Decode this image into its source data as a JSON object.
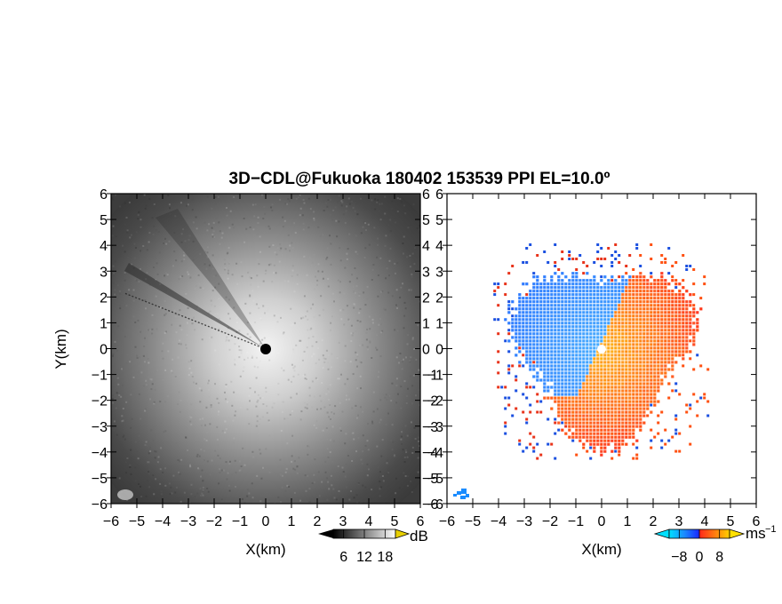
{
  "figure": {
    "title": "3D−CDL@Fukuoka 180402 153539 PPI EL=10.0º"
  },
  "chart_data": [
    {
      "type": "heatmap",
      "panel": "reflectivity",
      "xlabel": "X(km)",
      "ylabel": "Y(km)",
      "xlim": [
        -6,
        6
      ],
      "ylim": [
        -6,
        6
      ],
      "xticks": [
        "−6",
        "−5",
        "−4",
        "−3",
        "−2",
        "−1",
        "0",
        "1",
        "2",
        "3",
        "4",
        "5",
        "6"
      ],
      "yticks": [
        "6",
        "5",
        "4",
        "3",
        "2",
        "1",
        "0",
        "−1",
        "−2",
        "−3",
        "−4",
        "−5",
        "−6"
      ],
      "colormap": "grayscale",
      "colorbar": {
        "ticks": [
          "6",
          "12",
          "18"
        ],
        "unit": "dB",
        "range": [
          3,
          21
        ]
      },
      "description_values": {
        "radar_center": [
          0,
          0
        ],
        "max_range_km": 6
      }
    },
    {
      "type": "heatmap",
      "panel": "doppler_velocity",
      "xlabel": "X(km)",
      "xlim": [
        -6,
        6
      ],
      "ylim": [
        -6,
        6
      ],
      "xticks": [
        "−6",
        "−5",
        "−4",
        "−3",
        "−2",
        "−1",
        "0",
        "1",
        "2",
        "3",
        "4",
        "5",
        "6"
      ],
      "yticks": [
        "6",
        "5",
        "4",
        "3",
        "2",
        "1",
        "0",
        "−1",
        "−2",
        "−3",
        "−4",
        "−5",
        "−6"
      ],
      "colormap": "blue-red",
      "colorbar": {
        "ticks": [
          "−8",
          "0",
          "8"
        ],
        "unit": "ms",
        "unit_exp": "−1",
        "range": [
          -12,
          12
        ]
      },
      "negative_color": "#1a4fe0",
      "positive_color": "#ff5a10",
      "data_extent_km": 4.2
    }
  ]
}
